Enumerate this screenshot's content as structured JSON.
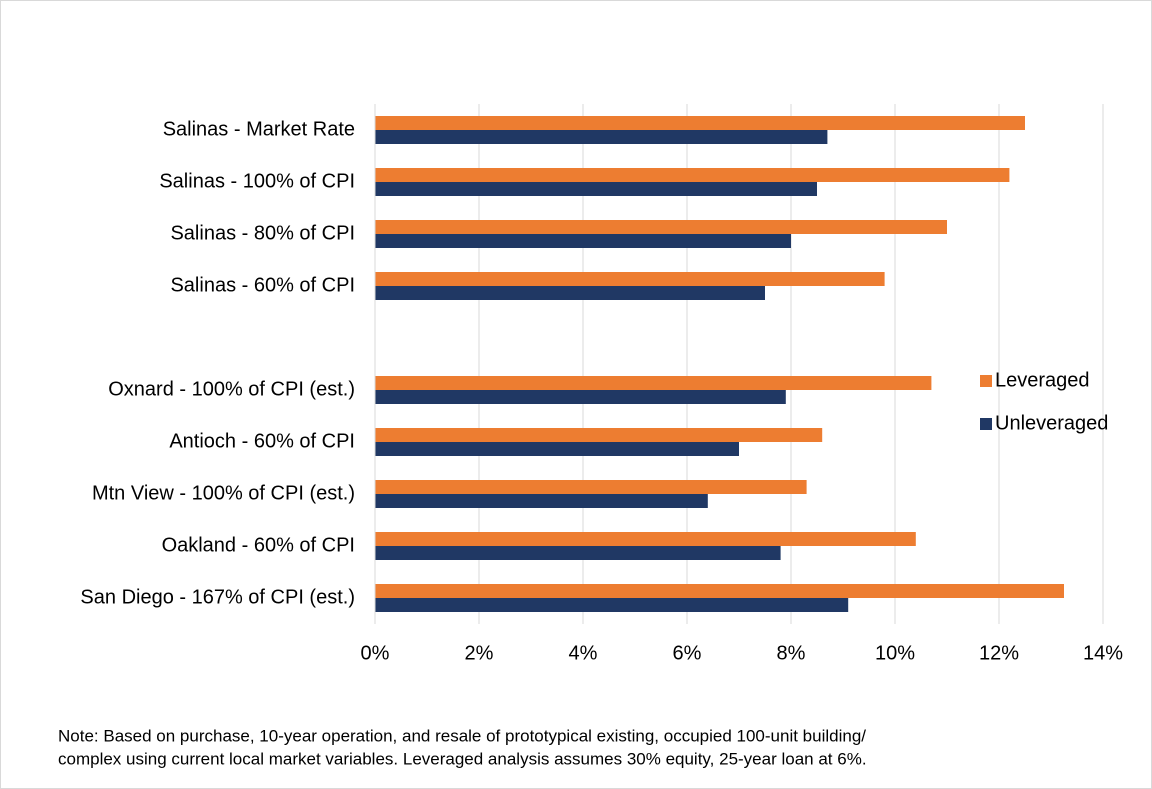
{
  "chart_data": {
    "type": "bar",
    "orientation": "horizontal",
    "categories": [
      "Salinas - Market Rate",
      "Salinas - 100% of CPI",
      "Salinas - 80% of CPI",
      "Salinas - 60% of CPI",
      null,
      "Oxnard - 100% of CPI (est.)",
      "Antioch - 60% of CPI",
      "Mtn View - 100% of CPI (est.)",
      "Oakland - 60% of CPI",
      "San Diego - 167% of CPI (est.)"
    ],
    "series": [
      {
        "name": "Leveraged",
        "color": "#ed7d31",
        "values": [
          12.5,
          12.2,
          11.0,
          9.8,
          null,
          10.7,
          8.6,
          8.3,
          10.4,
          13.25
        ]
      },
      {
        "name": "Unleveraged",
        "color": "#203864",
        "values": [
          8.7,
          8.5,
          8.0,
          7.5,
          null,
          7.9,
          7.0,
          6.4,
          7.8,
          9.1
        ]
      }
    ],
    "xlim": [
      0,
      14
    ],
    "xticks": [
      {
        "value": 0,
        "label": "0%"
      },
      {
        "value": 2,
        "label": "2%"
      },
      {
        "value": 4,
        "label": "4%"
      },
      {
        "value": 6,
        "label": "6%"
      },
      {
        "value": 8,
        "label": "8%"
      },
      {
        "value": 10,
        "label": "10%"
      },
      {
        "value": 12,
        "label": "12%"
      },
      {
        "value": 14,
        "label": "14%"
      }
    ],
    "grid": true,
    "legend": "right",
    "note": [
      "Note: Based on purchase, 10-year operation, and resale of prototypical existing, occupied 100-unit building/",
      "complex using current local market variables. Leveraged analysis assumes 30% equity, 25-year loan at 6%."
    ]
  }
}
